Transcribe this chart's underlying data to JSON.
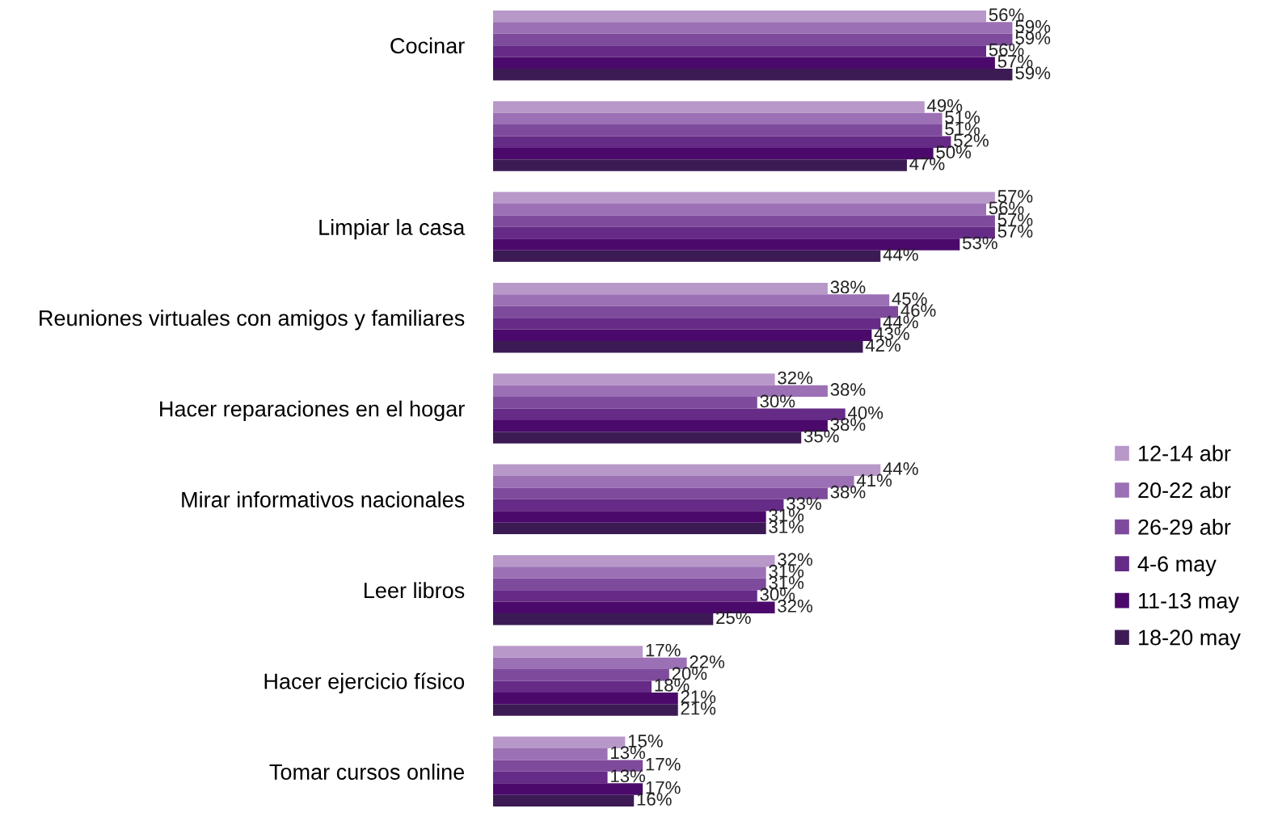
{
  "chart_data": {
    "type": "bar",
    "orientation": "horizontal",
    "categories": [
      "Cocinar",
      null,
      "Limpiar la casa",
      "Reuniones virtuales con amigos y familiares",
      "Hacer reparaciones en el hogar",
      "Mirar informativos nacionales",
      "Leer libros",
      "Hacer ejercicio físico",
      "Tomar cursos online"
    ],
    "series": [
      {
        "name": "12-14 abr",
        "color": "#b898c9",
        "values": [
          56,
          49,
          57,
          38,
          32,
          44,
          32,
          17,
          15
        ],
        "value_labels": [
          "56%",
          "49%",
          "57%",
          "38%",
          "32%",
          "44%",
          "32%",
          "17%",
          "15%"
        ]
      },
      {
        "name": "20-22 abr",
        "color": "#9c70b5",
        "values": [
          59,
          51,
          56,
          45,
          38,
          41,
          31,
          22,
          13
        ],
        "value_labels": [
          "59%",
          "51%",
          "56%",
          "45%",
          "38%",
          "41%",
          "31%",
          "22%",
          "13%"
        ]
      },
      {
        "name": "26-29 abr",
        "color": "#7e4b9c",
        "values": [
          59,
          51,
          57,
          46,
          30,
          38,
          31,
          20,
          17
        ],
        "value_labels": [
          "59%",
          "51%",
          "57%",
          "46%",
          "30%",
          "38%",
          "31%",
          "20%",
          "17%"
        ]
      },
      {
        "name": "4-6 may",
        "color": "#662a87",
        "values": [
          56,
          52,
          57,
          44,
          40,
          33,
          30,
          18,
          13
        ],
        "value_labels": [
          "56%",
          "52%",
          "57%",
          "44%",
          "40%",
          "33%",
          "30%",
          "18%",
          "13%"
        ]
      },
      {
        "name": "11-13 may",
        "color": "#4b0a6b",
        "values": [
          57,
          50,
          53,
          43,
          38,
          31,
          32,
          21,
          17
        ],
        "value_labels": [
          "57%",
          "50%",
          "53%",
          "43%",
          "38%",
          "31%",
          "32%",
          "21%",
          "17%"
        ]
      },
      {
        "name": "18-20 may",
        "color": "#3c1b55",
        "values": [
          59,
          47,
          44,
          42,
          35,
          31,
          25,
          21,
          16
        ],
        "value_labels": [
          "59%",
          "47%",
          "44%",
          "42%",
          "35%",
          "31%",
          "25%",
          "21%",
          "16%"
        ]
      }
    ],
    "tick_labels": "y",
    "grid": false,
    "legend": "right"
  }
}
